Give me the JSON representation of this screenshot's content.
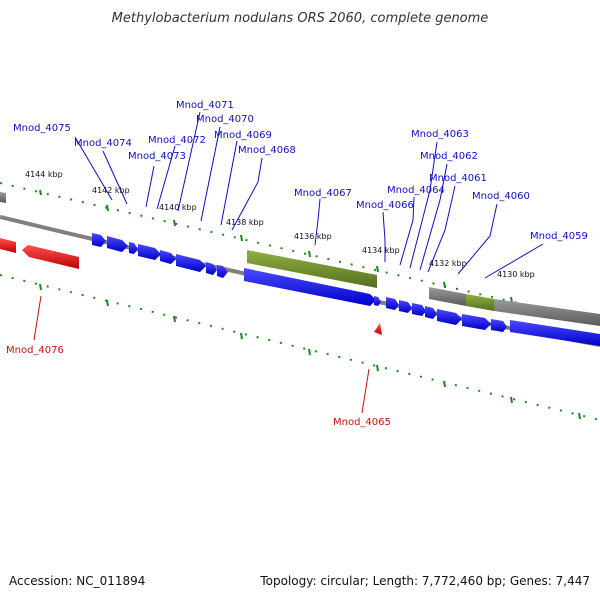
{
  "title": "Methylobacterium nodulans ORS 2060, complete genome",
  "footer": {
    "accession": "Accession: NC_011894",
    "topology": "Topology: circular; Length: 7,772,460 bp; Genes: 7,447"
  },
  "colors": {
    "plus_cds": "#1a1af0",
    "minus_cds": "#e81818",
    "rna": "#6b8e23",
    "other": "#6e6e6e",
    "tick": "#1a8a1a",
    "backbone": "#808080",
    "label_plus": "#1010c0",
    "label_minus": "#cc1010"
  },
  "kbp_ticks": [
    {
      "label": "4144 kbp",
      "pos": 4144
    },
    {
      "label": "4142 kbp",
      "pos": 4142
    },
    {
      "label": "4140 kbp",
      "pos": 4140
    },
    {
      "label": "4138 kbp",
      "pos": 4138
    },
    {
      "label": "4136 kbp",
      "pos": 4136
    },
    {
      "label": "4134 kbp",
      "pos": 4134
    },
    {
      "label": "4132 kbp",
      "pos": 4132
    },
    {
      "label": "4130 kbp",
      "pos": 4130
    }
  ],
  "genes": [
    {
      "label": "Mnod_4075",
      "strand": "plus"
    },
    {
      "label": "Mnod_4074",
      "strand": "plus"
    },
    {
      "label": "Mnod_4073",
      "strand": "plus"
    },
    {
      "label": "Mnod_4072",
      "strand": "plus"
    },
    {
      "label": "Mnod_4071",
      "strand": "plus"
    },
    {
      "label": "Mnod_4070",
      "strand": "plus"
    },
    {
      "label": "Mnod_4069",
      "strand": "plus"
    },
    {
      "label": "Mnod_4068",
      "strand": "plus"
    },
    {
      "label": "Mnod_4067",
      "strand": "plus"
    },
    {
      "label": "Mnod_4066",
      "strand": "plus"
    },
    {
      "label": "Mnod_4064",
      "strand": "plus"
    },
    {
      "label": "Mnod_4063",
      "strand": "plus"
    },
    {
      "label": "Mnod_4062",
      "strand": "plus"
    },
    {
      "label": "Mnod_4061",
      "strand": "plus"
    },
    {
      "label": "Mnod_4060",
      "strand": "plus"
    },
    {
      "label": "Mnod_4059",
      "strand": "plus"
    },
    {
      "label": "Mnod_4076",
      "strand": "minus"
    },
    {
      "label": "Mnod_4065",
      "strand": "minus"
    }
  ]
}
